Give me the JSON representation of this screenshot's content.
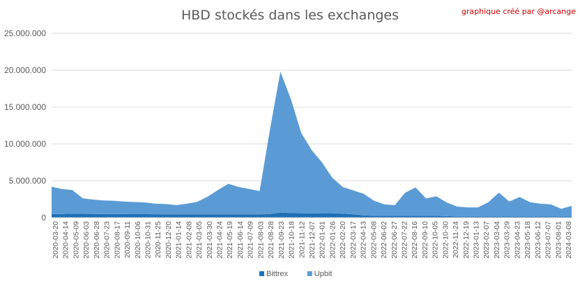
{
  "chart_data": {
    "type": "area",
    "title": "HBD stockés dans les exchanges",
    "credit": "graphique créé par @arcange",
    "stacked": true,
    "ylim": [
      0,
      25000000
    ],
    "yticks": [
      "0",
      "5.000.000",
      "10.000.000",
      "15.000.000",
      "20.000.000",
      "25.000.000"
    ],
    "grid": "horizontal",
    "legend_position": "bottom",
    "x_tick_labels": [
      "2020-03-20",
      "2020-04-14",
      "2020-05-09",
      "2020-06-03",
      "2020-06-28",
      "2020-07-23",
      "2020-08-17",
      "2020-09-11",
      "2020-10-06",
      "2020-10-31",
      "2020-11-25",
      "2020-12-20",
      "2021-01-14",
      "2021-02-08",
      "2021-03-05",
      "2021-03-30",
      "2021-04-24",
      "2021-05-19",
      "2021-06-14",
      "2021-07-09",
      "2021-08-03",
      "2021-08-28",
      "2021-09-23",
      "2021-10-18",
      "2021-11-12",
      "2021-12-07",
      "2022-01-01",
      "2022-01-26",
      "2022-02-20",
      "2022-03-17",
      "2022-04-13",
      "2022-05-08",
      "2022-06-02",
      "2022-06-27",
      "2022-07-22",
      "2022-08-16",
      "2022-09-10",
      "2022-10-05",
      "2022-10-30",
      "2022-11-24",
      "2022-12-19",
      "2023-01-13",
      "2023-02-07",
      "2023-03-04",
      "2023-03-29",
      "2023-04-23",
      "2023-05-18",
      "2023-06-12",
      "2023-07-07",
      "2023-08-01",
      "2024-03-08"
    ],
    "series": [
      {
        "name": "Bittrex",
        "color": "#1f6fb5",
        "values": [
          500000,
          500000,
          550000,
          520000,
          500000,
          480000,
          480000,
          480000,
          470000,
          470000,
          460000,
          460000,
          450000,
          450000,
          450000,
          450000,
          450000,
          450000,
          450000,
          450000,
          450000,
          480000,
          700000,
          620000,
          600000,
          580000,
          600000,
          600000,
          550000,
          450000,
          300000,
          250000,
          250000,
          250000,
          250000,
          250000,
          250000,
          250000,
          200000,
          150000,
          150000,
          150000,
          150000,
          150000,
          150000,
          150000,
          150000,
          150000,
          150000,
          150000,
          150000
        ]
      },
      {
        "name": "Upbit",
        "color": "#5b9bd5",
        "values": [
          3700000,
          3400000,
          3200000,
          2100000,
          1950000,
          1850000,
          1800000,
          1700000,
          1650000,
          1600000,
          1440000,
          1390000,
          1250000,
          1450000,
          1700000,
          2400000,
          3300000,
          4150000,
          3700000,
          3450000,
          3150000,
          11500000,
          19100000,
          15500000,
          10900000,
          8600000,
          6900000,
          4800000,
          3600000,
          3250000,
          2950000,
          2050000,
          1550000,
          1450000,
          3150000,
          3850000,
          2350000,
          2650000,
          1850000,
          1350000,
          1250000,
          1250000,
          1950000,
          3250000,
          2050000,
          2650000,
          1950000,
          1750000,
          1650000,
          1050000,
          1450000
        ]
      }
    ]
  }
}
